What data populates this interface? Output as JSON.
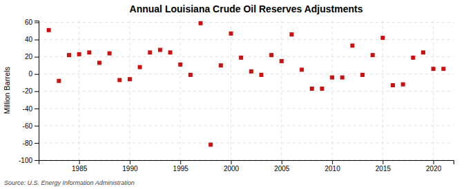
{
  "chart_data": {
    "type": "scatter",
    "title": "Annual Louisiana Crude Oil Reserves Adjustments",
    "ylabel": "Million Barrels",
    "annotations": [
      "Source: U.S. Energy Information Administration"
    ],
    "x": [
      1982,
      1983,
      1984,
      1985,
      1986,
      1987,
      1988,
      1989,
      1990,
      1991,
      1992,
      1993,
      1994,
      1995,
      1996,
      1997,
      1998,
      1999,
      2000,
      2001,
      2002,
      2003,
      2004,
      2005,
      2006,
      2007,
      2008,
      2009,
      2010,
      2011,
      2012,
      2013,
      2014,
      2015,
      2016,
      2017,
      2018,
      2019,
      2020,
      2021
    ],
    "values": [
      51,
      -8,
      22,
      23,
      25,
      13,
      24,
      -7,
      -6,
      8,
      25,
      28,
      25,
      11,
      -1,
      59,
      -82,
      10,
      47,
      19,
      3,
      -1,
      22,
      15,
      46,
      5,
      -17,
      -17,
      -4,
      -4,
      33,
      -1,
      22,
      42,
      -13,
      -12,
      19,
      25,
      6,
      6
    ],
    "color": "#cc1111",
    "marker": "square",
    "xlim": [
      1981,
      2022
    ],
    "xticks": [
      1985,
      1990,
      1995,
      2000,
      2005,
      2010,
      2015,
      2020
    ],
    "ylim": [
      -100,
      62
    ],
    "yticks": [
      -100,
      -80,
      -60,
      -40,
      -20,
      0,
      20,
      40,
      60
    ],
    "grid": true
  }
}
